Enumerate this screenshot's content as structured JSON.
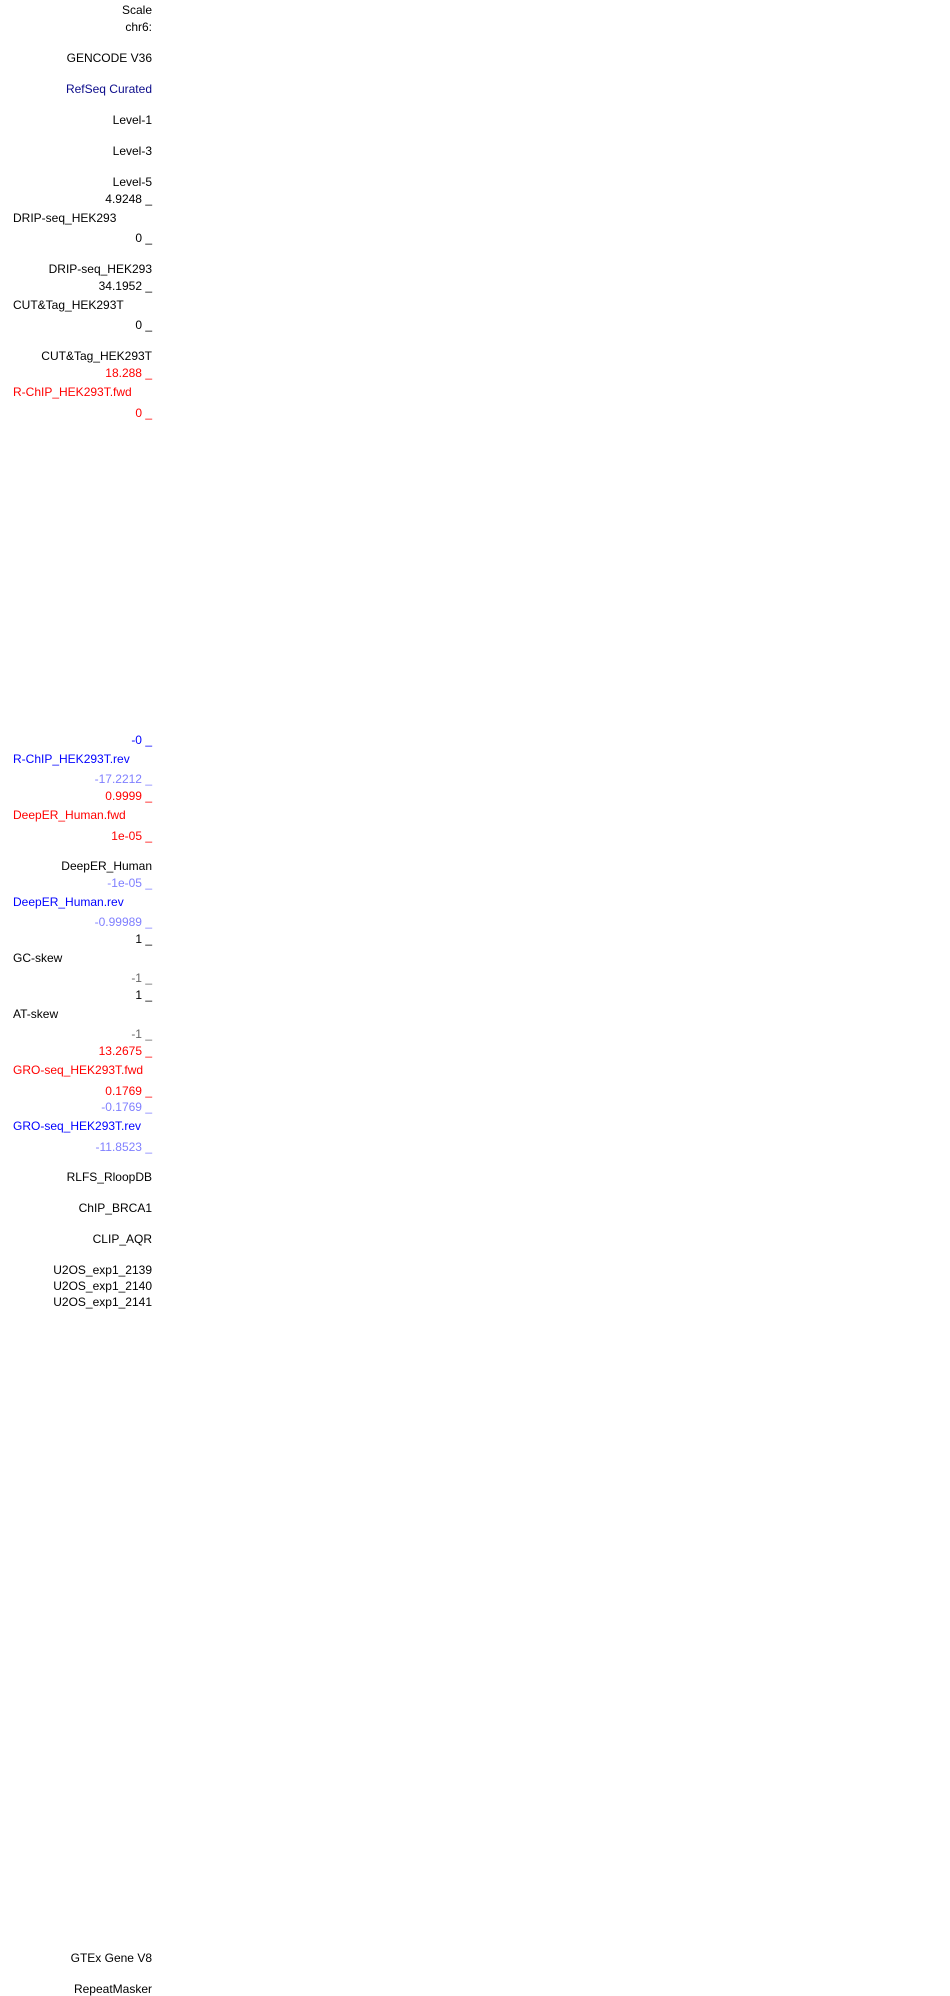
{
  "colors": {
    "label_default": "#000000",
    "label_refseq": "#0b0b8a",
    "forward_strand": "#ff0000",
    "reverse_strand": "#0000ff",
    "reverse_axis": "#7f7fff",
    "skew_min": "#666666"
  },
  "ruler": {
    "scale": "Scale",
    "chrom": "chr6:"
  },
  "tracks": {
    "gencode": "GENCODE V36",
    "refseq": "RefSeq Curated",
    "level1": "Level-1",
    "level3": "Level-3",
    "level5": "Level-5",
    "drip_max": "4.9248 _",
    "drip_title": "DRIP-seq_HEK293",
    "drip_min": "0 _",
    "drip_label": "DRIP-seq_HEK293",
    "cut_max": "34.1952 _",
    "cut_title": "CUT&Tag_HEK293T",
    "cut_min": "0 _",
    "cut_label": "CUT&Tag_HEK293T",
    "rchip_fwd_max": "18.288 _",
    "rchip_fwd_title": "R-ChIP_HEK293T.fwd",
    "rchip_fwd_min": "0 _",
    "rchip_rev_max": "-0 _",
    "rchip_rev_title": "R-ChIP_HEK293T.rev",
    "rchip_rev_min": "-17.2212 _",
    "deeper_fwd_max": "0.9999 _",
    "deeper_fwd_title": "DeepER_Human.fwd",
    "deeper_fwd_min": "1e-05 _",
    "deeper_label": "DeepER_Human",
    "deeper_rev_max": "-1e-05 _",
    "deeper_rev_title": "DeepER_Human.rev",
    "deeper_rev_min": "-0.99989 _",
    "gc_max": "1 _",
    "gc_title": "GC-skew",
    "gc_min": "-1 _",
    "at_max": "1 _",
    "at_title": "AT-skew",
    "at_min": "-1 _",
    "gro_fwd_max": "13.2675 _",
    "gro_fwd_title": "GRO-seq_HEK293T.fwd",
    "gro_fwd_min": "0.1769 _",
    "gro_rev_max": "-0.1769 _",
    "gro_rev_title": "GRO-seq_HEK293T.rev",
    "gro_rev_min": "-11.8523 _",
    "rlfs": "RLFS_RloopDB",
    "chip_brca1": "ChIP_BRCA1",
    "clip_aqr": "CLIP_AQR",
    "u2os_2139": "U2OS_exp1_2139",
    "u2os_2140": "U2OS_exp1_2140",
    "u2os_2141": "U2OS_exp1_2141",
    "gtex": "GTEx Gene V8",
    "repeatmasker": "RepeatMasker"
  }
}
